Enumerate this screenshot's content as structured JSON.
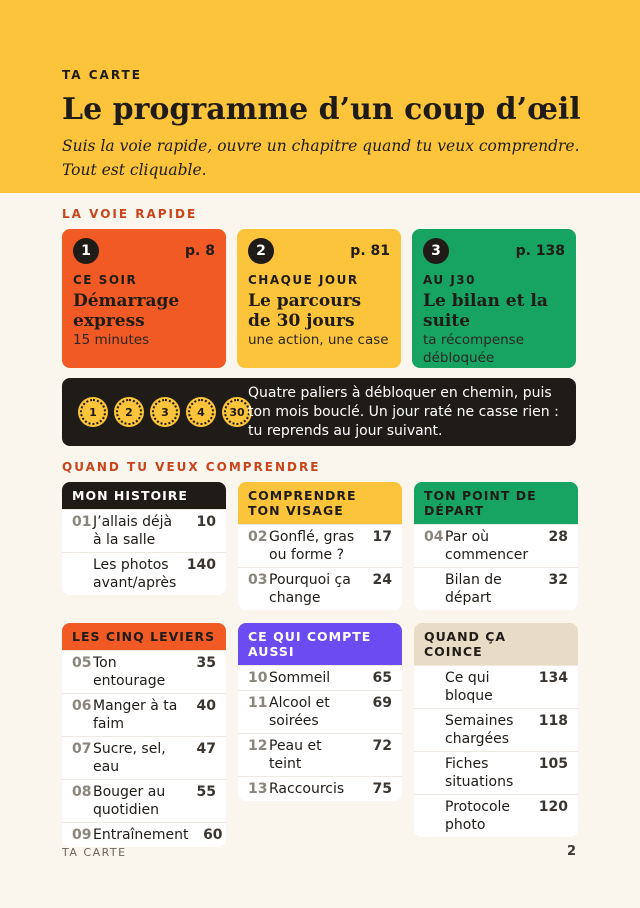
{
  "header": {
    "kicker": "TA CARTE",
    "title": "Le programme d’un coup d’œil",
    "subtitle": "Suis la voie rapide, ouvre un chapitre quand tu veux comprendre. Tout est cliquable."
  },
  "fast_track": {
    "heading": "LA VOIE RAPIDE",
    "steps": [
      {
        "number": 1,
        "page": "p. 8",
        "when": "CE SOIR",
        "title": "Démarrage express",
        "detail": "15 minutes"
      },
      {
        "number": 2,
        "page": "p. 81",
        "when": "CHAQUE JOUR",
        "title": "Le parcours de 30 jours",
        "detail": "une action, une case"
      },
      {
        "number": 3,
        "page": "p. 138",
        "when": "AU J30",
        "title": "Le bilan et la suite",
        "detail": "ta récompense débloquée"
      }
    ]
  },
  "milestones": {
    "badges": [
      1,
      2,
      3,
      4,
      30
    ],
    "text": "Quatre paliers à débloquer en chemin, puis ton mois bouclé. Un jour raté ne casse rien : tu reprends au jour suivant."
  },
  "chapters": {
    "heading": "QUAND TU VEUX COMPRENDRE",
    "sections": [
      {
        "title": "MON HISTOIRE",
        "entries": [
          {
            "number": "01",
            "label": "J’allais déjà à la salle",
            "page": 10
          },
          {
            "label": "Les photos avant/après",
            "page": 140
          }
        ]
      },
      {
        "title": "COMPRENDRE TON VISAGE",
        "entries": [
          {
            "number": "02",
            "label": "Gonflé, gras ou forme ?",
            "page": 17
          },
          {
            "number": "03",
            "label": "Pourquoi ça change",
            "page": 24
          }
        ]
      },
      {
        "title": "TON POINT DE DÉPART",
        "entries": [
          {
            "number": "04",
            "label": "Par où commencer",
            "page": 28
          },
          {
            "label": "Bilan de départ",
            "page": 32
          }
        ]
      },
      {
        "title": "LES CINQ LEVIERS",
        "entries": [
          {
            "number": "05",
            "label": "Ton entourage",
            "page": 35
          },
          {
            "number": "06",
            "label": "Manger à ta faim",
            "page": 40
          },
          {
            "number": "07",
            "label": "Sucre, sel, eau",
            "page": 47
          },
          {
            "number": "08",
            "label": "Bouger au quotidien",
            "page": 55
          },
          {
            "number": "09",
            "label": "Entraînement",
            "page": 60
          }
        ]
      },
      {
        "title": "CE QUI COMPTE AUSSI",
        "entries": [
          {
            "number": "10",
            "label": "Sommeil",
            "page": 65
          },
          {
            "number": "11",
            "label": "Alcool et soirées",
            "page": 69
          },
          {
            "number": "12",
            "label": "Peau et teint",
            "page": 72
          },
          {
            "number": "13",
            "label": "Raccourcis",
            "page": 75
          }
        ]
      },
      {
        "title": "QUAND ÇA COINCE",
        "entries": [
          {
            "label": "Ce qui bloque",
            "page": 134
          },
          {
            "label": "Semaines chargées",
            "page": 118
          },
          {
            "label": "Fiches situations",
            "page": 105
          },
          {
            "label": "Protocole photo",
            "page": 120
          }
        ]
      }
    ]
  },
  "footer": {
    "label": "TA CARTE",
    "page": 2
  }
}
